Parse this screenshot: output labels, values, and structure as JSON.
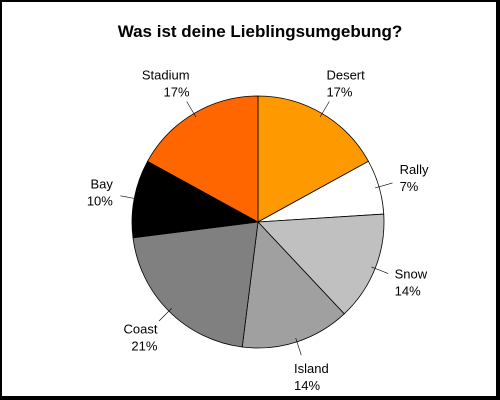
{
  "chart_data": {
    "type": "pie",
    "title": "Was ist deine Lieblingsumgebung?",
    "start": "12 o'clock",
    "direction": "clockwise",
    "slices": [
      {
        "label": "Desert",
        "percent_label": "17%",
        "value": 17,
        "color": "#ff9900"
      },
      {
        "label": "Rally",
        "percent_label": "7%",
        "value": 7,
        "color": "#ffffff"
      },
      {
        "label": "Snow",
        "percent_label": "14%",
        "value": 14,
        "color": "#c0c0c0"
      },
      {
        "label": "Island",
        "percent_label": "14%",
        "value": 14,
        "color": "#a0a0a0"
      },
      {
        "label": "Coast",
        "percent_label": "21%",
        "value": 21,
        "color": "#808080"
      },
      {
        "label": "Bay",
        "percent_label": "10%",
        "value": 10,
        "color": "#000000"
      },
      {
        "label": "Stadium",
        "percent_label": "17%",
        "value": 17,
        "color": "#ff6600"
      }
    ]
  }
}
